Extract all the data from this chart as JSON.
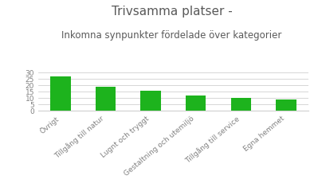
{
  "title_line1": "Trivsamma platser -",
  "title_line2": "Inkomna synpunkter fördelade över kategorier",
  "categories": [
    "Övrigt",
    "Tillgång till natur",
    "Lugnt och tryggt",
    "Gestaltning och utemiljö",
    "Tillgång till service",
    "Egna hemmet"
  ],
  "values": [
    27,
    19,
    16,
    12,
    10,
    9
  ],
  "bar_color": "#1db31d",
  "ylim": [
    0,
    30
  ],
  "yticks": [
    0,
    5,
    10,
    15,
    20,
    25,
    30
  ],
  "background_color": "#ffffff",
  "grid_color": "#d0d0d0",
  "title_color": "#595959",
  "tick_color": "#808080",
  "title_fontsize": 11,
  "subtitle_fontsize": 8.5,
  "tick_fontsize": 6.5,
  "bar_width": 0.45
}
